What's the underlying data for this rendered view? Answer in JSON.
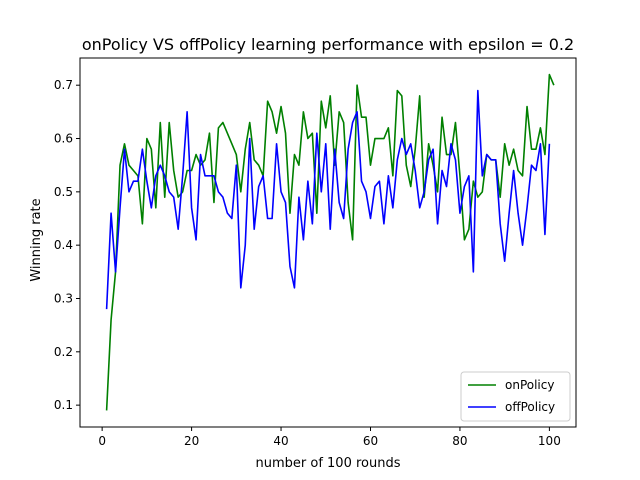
{
  "chart_data": {
    "type": "line",
    "title": "onPolicy VS offPolicy learning performance with epsilon = 0.2",
    "xlabel": "number of 100 rounds",
    "ylabel": "Winning rate",
    "xlim": [
      -4.95,
      105.95
    ],
    "ylim": [
      0.059,
      0.751
    ],
    "xticks": [
      0,
      20,
      40,
      60,
      80,
      100
    ],
    "xtick_labels": [
      "0",
      "20",
      "40",
      "60",
      "80",
      "100"
    ],
    "yticks": [
      0.1,
      0.2,
      0.3,
      0.4,
      0.5,
      0.6,
      0.7
    ],
    "ytick_labels": [
      "0.1",
      "0.2",
      "0.3",
      "0.4",
      "0.5",
      "0.6",
      "0.7"
    ],
    "grid": false,
    "legend_position": "lower right",
    "series": [
      {
        "name": "onPolicy",
        "color": "#008000",
        "values": [
          0.09,
          0.26,
          0.35,
          0.55,
          0.59,
          0.55,
          0.54,
          0.53,
          0.44,
          0.6,
          0.58,
          0.47,
          0.63,
          0.49,
          0.63,
          0.54,
          0.49,
          0.5,
          0.54,
          0.54,
          0.57,
          0.55,
          0.56,
          0.61,
          0.48,
          0.62,
          0.63,
          0.61,
          0.59,
          0.57,
          0.5,
          0.58,
          0.63,
          0.56,
          0.55,
          0.53,
          0.67,
          0.65,
          0.61,
          0.66,
          0.61,
          0.46,
          0.57,
          0.55,
          0.65,
          0.6,
          0.61,
          0.46,
          0.67,
          0.62,
          0.68,
          0.55,
          0.65,
          0.63,
          0.48,
          0.41,
          0.7,
          0.64,
          0.64,
          0.55,
          0.6,
          0.6,
          0.6,
          0.62,
          0.53,
          0.69,
          0.68,
          0.55,
          0.51,
          0.58,
          0.68,
          0.49,
          0.59,
          0.55,
          0.5,
          0.64,
          0.57,
          0.57,
          0.63,
          0.53,
          0.41,
          0.43,
          0.52,
          0.49,
          0.5,
          0.57,
          0.56,
          0.56,
          0.49,
          0.59,
          0.55,
          0.58,
          0.54,
          0.53,
          0.66,
          0.58,
          0.58,
          0.62,
          0.57,
          0.72,
          0.7
        ]
      },
      {
        "name": "offPolicy",
        "color": "#0000ff",
        "values": [
          0.28,
          0.46,
          0.35,
          0.47,
          0.58,
          0.5,
          0.52,
          0.52,
          0.58,
          0.52,
          0.47,
          0.53,
          0.55,
          0.53,
          0.5,
          0.49,
          0.43,
          0.53,
          0.65,
          0.47,
          0.41,
          0.57,
          0.53,
          0.53,
          0.53,
          0.5,
          0.49,
          0.46,
          0.45,
          0.55,
          0.32,
          0.4,
          0.6,
          0.43,
          0.51,
          0.53,
          0.45,
          0.45,
          0.59,
          0.5,
          0.48,
          0.36,
          0.32,
          0.49,
          0.41,
          0.52,
          0.44,
          0.61,
          0.5,
          0.59,
          0.43,
          0.58,
          0.48,
          0.45,
          0.58,
          0.63,
          0.65,
          0.52,
          0.5,
          0.45,
          0.51,
          0.52,
          0.44,
          0.53,
          0.47,
          0.56,
          0.6,
          0.57,
          0.59,
          0.54,
          0.47,
          0.5,
          0.56,
          0.58,
          0.44,
          0.54,
          0.51,
          0.59,
          0.56,
          0.46,
          0.51,
          0.53,
          0.35,
          0.69,
          0.53,
          0.57,
          0.56,
          0.56,
          0.44,
          0.37,
          0.46,
          0.54,
          0.46,
          0.4,
          0.47,
          0.55,
          0.54,
          0.59,
          0.42,
          0.59
        ]
      }
    ]
  }
}
